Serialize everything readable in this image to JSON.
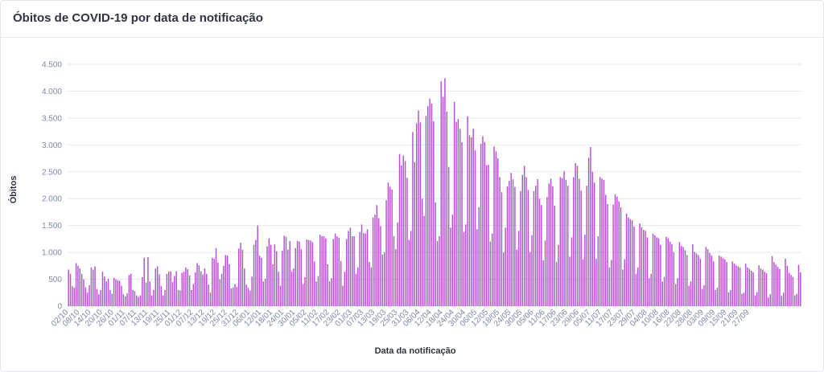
{
  "card": {
    "title": "Óbitos de COVID-19 por data de notificação"
  },
  "chart_data": {
    "type": "bar",
    "color": "#b44fd6",
    "ylabel": "Óbitos",
    "xlabel": "Data da notificação",
    "ylim": [
      0,
      4500
    ],
    "yticks": [
      0,
      500,
      1000,
      1500,
      2000,
      2500,
      3000,
      3500,
      4000,
      4500
    ],
    "ytick_labels": [
      "0",
      "500",
      "1.000",
      "1.500",
      "2.000",
      "2.500",
      "3.000",
      "3.500",
      "4.000",
      "4.500"
    ],
    "grid": true,
    "x_tick_labels": [
      "02/10",
      "08/10",
      "14/10",
      "20/10",
      "26/10",
      "01/11",
      "07/11",
      "13/11",
      "19/11",
      "25/11",
      "01/12",
      "07/12",
      "13/12",
      "19/12",
      "25/12",
      "31/12",
      "06/01",
      "12/01",
      "18/01",
      "24/01",
      "30/01",
      "05/02",
      "11/02",
      "17/02",
      "23/02",
      "01/03",
      "07/03",
      "13/03",
      "19/03",
      "25/03",
      "31/03",
      "06/04",
      "12/04",
      "18/04",
      "24/04",
      "30/04",
      "06/05",
      "12/05",
      "18/05",
      "24/05",
      "30/05",
      "05/06",
      "11/06",
      "17/06",
      "23/06",
      "29/06",
      "05/07",
      "11/07",
      "17/07",
      "23/07",
      "29/07",
      "04/08",
      "10/08",
      "16/08",
      "22/08",
      "28/08",
      "03/09",
      "09/09",
      "15/09",
      "21/09",
      "27/09"
    ],
    "x_tick_every": 6,
    "values": [
      680,
      600,
      370,
      340,
      800,
      750,
      700,
      600,
      500,
      350,
      250,
      390,
      720,
      680,
      740,
      320,
      220,
      300,
      640,
      550,
      460,
      510,
      300,
      230,
      530,
      500,
      480,
      470,
      380,
      220,
      180,
      240,
      580,
      600,
      300,
      280,
      200,
      170,
      200,
      540,
      900,
      440,
      910,
      460,
      200,
      300,
      700,
      740,
      590,
      370,
      200,
      300,
      600,
      640,
      650,
      450,
      560,
      650,
      300,
      290,
      620,
      640,
      720,
      690,
      570,
      300,
      410,
      630,
      800,
      760,
      650,
      590,
      700,
      600,
      400,
      250,
      900,
      880,
      1080,
      810,
      500,
      600,
      750,
      950,
      940,
      780,
      330,
      350,
      410,
      360,
      1070,
      1180,
      1050,
      700,
      400,
      340,
      290,
      550,
      1140,
      1230,
      1500,
      940,
      900,
      460,
      510,
      1110,
      1260,
      1140,
      780,
      1150,
      1020,
      640,
      380,
      1030,
      1310,
      1290,
      1050,
      1210,
      640,
      700,
      1080,
      1210,
      1200,
      1060,
      410,
      540,
      1240,
      1230,
      1220,
      1190,
      830,
      460,
      560,
      1330,
      1300,
      1300,
      1260,
      780,
      460,
      520,
      1250,
      1350,
      1300,
      1270,
      840,
      380,
      640,
      1250,
      1400,
      1460,
      1300,
      1300,
      600,
      720,
      1380,
      1520,
      1360,
      1350,
      1430,
      820,
      720,
      1650,
      1700,
      1880,
      1640,
      1490,
      960,
      1000,
      1970,
      2300,
      2220,
      2170,
      1300,
      1060,
      1560,
      2830,
      2620,
      2800,
      2700,
      2390,
      1230,
      1400,
      3240,
      2680,
      3400,
      3640,
      3420,
      2000,
      1680,
      3540,
      3720,
      3860,
      3770,
      3440,
      1930,
      1210,
      1300,
      4180,
      3890,
      4240,
      3620,
      2590,
      1460,
      1700,
      3800,
      3430,
      3480,
      3300,
      3050,
      1380,
      1520,
      3530,
      3180,
      3140,
      3300,
      2900,
      1430,
      1840,
      3020,
      3160,
      3050,
      2620,
      2630,
      1200,
      1350,
      2970,
      2880,
      2750,
      2400,
      2120,
      1000,
      1460,
      2230,
      2330,
      2480,
      2360,
      2220,
      1050,
      1400,
      2140,
      2440,
      2610,
      2400,
      2160,
      1010,
      1320,
      2140,
      2240,
      2360,
      2000,
      1880,
      850,
      1220,
      2030,
      2280,
      2370,
      2230,
      1870,
      820,
      1140,
      2400,
      2380,
      2510,
      2350,
      2240,
      920,
      1280,
      2400,
      2660,
      2610,
      2370,
      2150,
      870,
      1330,
      2240,
      2760,
      2960,
      2500,
      2300,
      880,
      1300,
      2400,
      2370,
      2350,
      2070,
      1900,
      720,
      860,
      1890,
      2080,
      2040,
      1950,
      1840,
      680,
      870,
      1720,
      1650,
      1620,
      1600,
      1480,
      600,
      720,
      1540,
      1470,
      1420,
      1400,
      1280,
      520,
      600,
      1350,
      1320,
      1280,
      1260,
      1140,
      460,
      540,
      1290,
      1260,
      1200,
      1150,
      1000,
      410,
      520,
      1190,
      1120,
      1100,
      1040,
      950,
      380,
      460,
      1150,
      1010,
      980,
      950,
      880,
      320,
      390,
      1100,
      1060,
      990,
      940,
      830,
      300,
      340,
      940,
      920,
      890,
      870,
      820,
      260,
      300,
      830,
      790,
      760,
      740,
      720,
      230,
      250,
      790,
      720,
      690,
      660,
      630,
      200,
      260,
      760,
      700,
      680,
      640,
      610,
      160,
      220,
      930,
      820,
      770,
      730,
      690,
      190,
      250,
      880,
      750,
      620,
      580,
      540,
      200,
      230,
      770,
      630
    ]
  }
}
